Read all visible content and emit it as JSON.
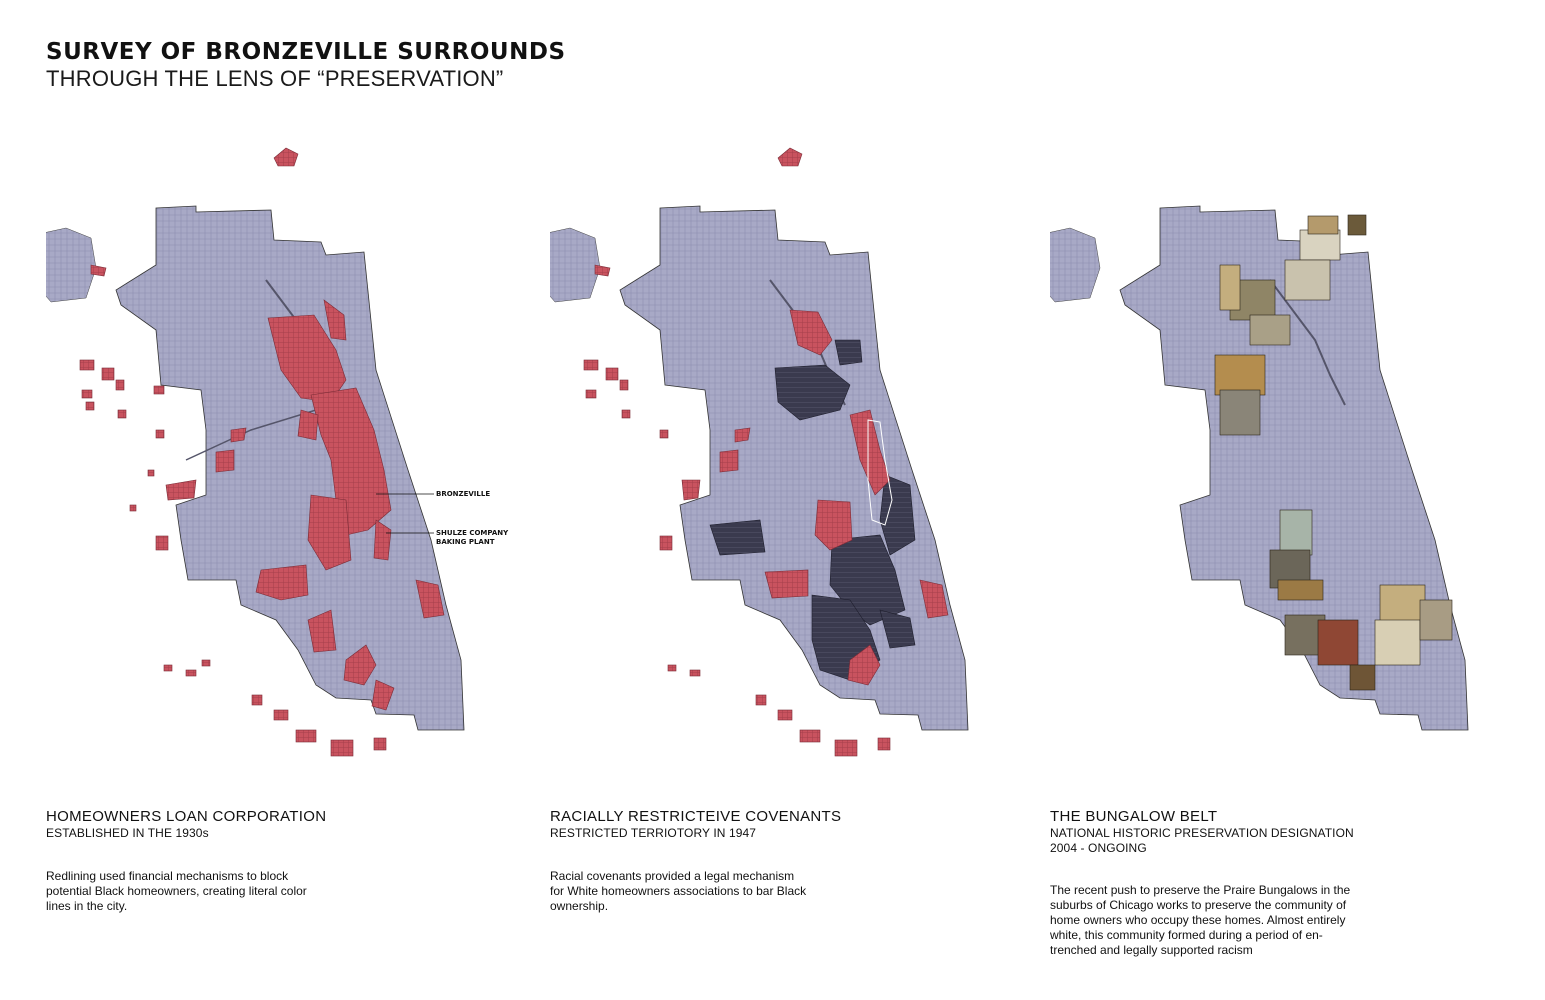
{
  "header": {
    "title": "SURVEY OF BRONZEVILLE SURROUNDS",
    "subtitle": "THROUGH THE LENS OF “PRESERVATION”"
  },
  "colors": {
    "map_base": "#a8a9c6",
    "redline": "#c9535f",
    "covenant": "#3a3a4e",
    "collage": "#b49a6c",
    "outline": "#222222"
  },
  "panels": [
    {
      "title": "HOMEOWNERS LOAN CORPORATION",
      "subtitle_lines": [
        "ESTABLISHED IN THE 1930s"
      ],
      "body_lines": [
        "Redlining used financial mechanisms to block",
        "potential Black homeowners, creating literal color",
        "lines in the city."
      ],
      "map_labels": [
        "BRONZEVILLE",
        "SHULZE COMPANY",
        "BAKING PLANT"
      ]
    },
    {
      "title": "RACIALLY RESTRICTEIVE COVENANTS",
      "subtitle_lines": [
        "RESTRICTED TERRIOTORY IN 1947"
      ],
      "body_lines": [
        "Racial covenants provided a legal mechanism",
        "for White homeowners associations to bar Black",
        "ownership."
      ]
    },
    {
      "title": "THE BUNGALOW BELT",
      "subtitle_lines": [
        "NATIONAL HISTORIC PRESERVATION DESIGNATION",
        "2004 -  ONGOING"
      ],
      "body_lines": [
        "The recent push to preserve the Praire Bungalows in the",
        "suburbs of Chicago works to preserve the community of",
        "home owners who occupy these homes. Almost entirely",
        "white, this community formed during a period of en-",
        "trenched and legally supported racism"
      ]
    }
  ]
}
